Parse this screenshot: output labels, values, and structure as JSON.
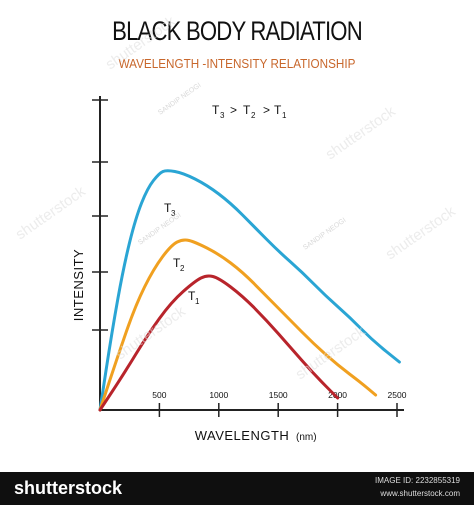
{
  "header": {
    "title": "BLACK BODY RADIATION",
    "subtitle": "WAVELENGTH -INTENSITY RELATIONSHIP"
  },
  "chart_data": {
    "type": "line",
    "xlabel": "WAVELENGTH",
    "xlabel_unit": "(nm)",
    "ylabel": "INTENSITY",
    "x_ticks": [
      500,
      1000,
      1500,
      2000,
      2500
    ],
    "xlim": [
      0,
      2600
    ],
    "ylim": [
      0,
      100
    ],
    "annotation": {
      "T3": "T",
      "sub3": "3",
      "T2": "T",
      "sub2": "2",
      "T1": "T",
      "sub1": "1",
      "gt1": ">",
      "gt2": ">"
    },
    "series": [
      {
        "name": "T3",
        "label": "T",
        "sub": "3",
        "color": "#2aa5d4",
        "x": [
          0,
          100,
          200,
          300,
          400,
          500,
          560,
          700,
          900,
          1100,
          1300,
          1500,
          1700,
          1900,
          2100,
          2300,
          2520
        ],
        "y": [
          0,
          26,
          48,
          64,
          74,
          79,
          80,
          79,
          75,
          69,
          61,
          53,
          46,
          38,
          31,
          23,
          16
        ]
      },
      {
        "name": "T2",
        "label": "T",
        "sub": "2",
        "color": "#f0a020",
        "x": [
          0,
          150,
          300,
          450,
          600,
          700,
          800,
          1000,
          1200,
          1400,
          1600,
          1800,
          2000,
          2200,
          2320
        ],
        "y": [
          0,
          18,
          35,
          47,
          55,
          57,
          56,
          52,
          46,
          38,
          30,
          22,
          15,
          9,
          5
        ]
      },
      {
        "name": "T1",
        "label": "T",
        "sub": "1",
        "color": "#b8242b",
        "x": [
          0,
          200,
          400,
          600,
          800,
          900,
          1000,
          1200,
          1400,
          1600,
          1800,
          2000
        ],
        "y": [
          0,
          12,
          25,
          36,
          43,
          45,
          44,
          38,
          30,
          21,
          12,
          4
        ]
      }
    ]
  },
  "watermark": {
    "brand": "shutterstock",
    "author": "SANDIP NEOGI"
  },
  "footer": {
    "brand": "shutterstock",
    "brand_mark": "·",
    "image_id": "IMAGE ID: 2232855319",
    "url": "www.shutterstock.com"
  }
}
